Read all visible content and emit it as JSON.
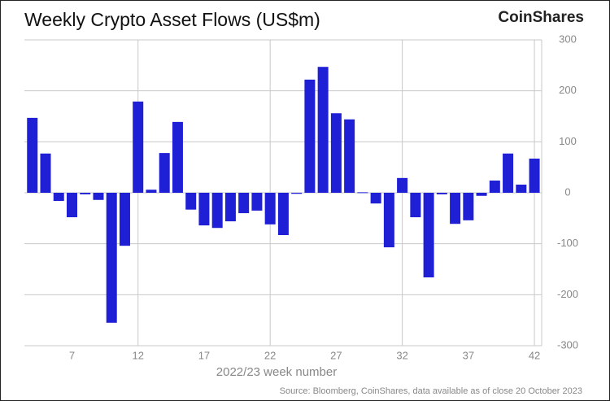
{
  "chart_data": {
    "type": "bar",
    "title": "Weekly Crypto Asset Flows (US$m)",
    "brand": "CoinShares",
    "x_label": "2022/23 week number",
    "source": "Source: Bloomberg, CoinShares, data available as of close 20 October 2023",
    "x": [
      4,
      5,
      6,
      7,
      8,
      9,
      10,
      11,
      12,
      13,
      14,
      15,
      16,
      17,
      18,
      19,
      20,
      21,
      22,
      23,
      24,
      25,
      26,
      27,
      28,
      29,
      30,
      31,
      32,
      33,
      34,
      35,
      36,
      37,
      38,
      39,
      40,
      41,
      42
    ],
    "values": [
      147,
      77,
      -16,
      -48,
      -3,
      -14,
      -255,
      -104,
      179,
      6,
      78,
      139,
      -33,
      -64,
      -69,
      -56,
      -40,
      -35,
      -62,
      -83,
      -2,
      222,
      247,
      156,
      144,
      1,
      -21,
      -107,
      29,
      -48,
      -166,
      -3,
      -61,
      -54,
      -6,
      24,
      77,
      16,
      67
    ],
    "color": "#1f1fd6",
    "xlim": [
      3.4,
      42.55
    ],
    "xticks": [
      7,
      12,
      17,
      22,
      27,
      32,
      37,
      42
    ],
    "ylim": [
      -300,
      300
    ],
    "yticks": [
      -300,
      -200,
      -100,
      0,
      100,
      200,
      300
    ],
    "grid": true
  }
}
